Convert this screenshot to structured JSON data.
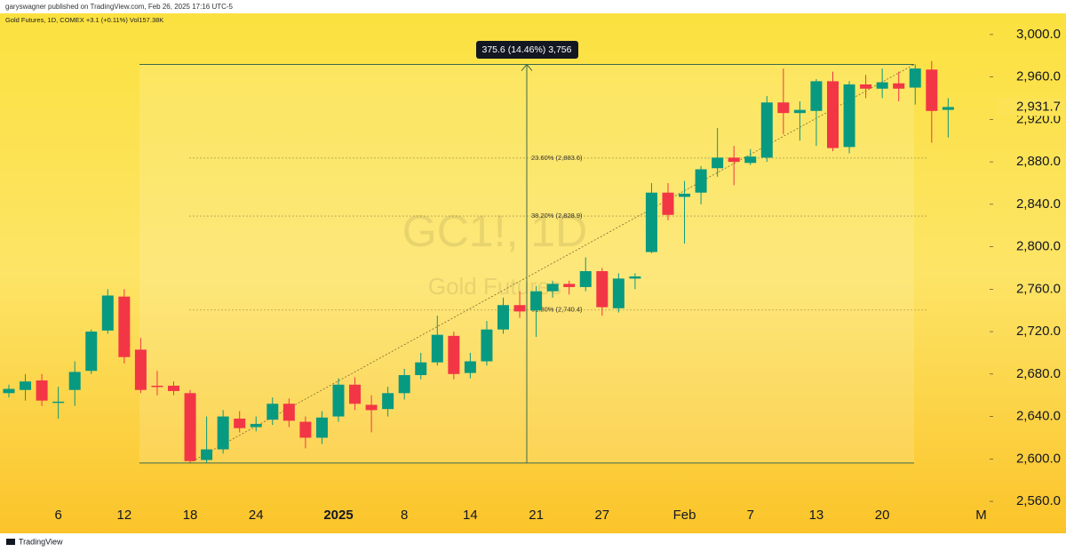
{
  "header": {
    "byline": "garyswagner published on TradingView.com, Feb 26, 2025 17:16 UTC-5",
    "footer": "TradingView"
  },
  "chart_data": {
    "type": "candlestick",
    "title": "Gold Futures, 1D, COMEX +3.1 (+0.11%) Vol157.38K",
    "watermark": "GC1!, 1D",
    "watermark_subtitle": "Gold Futures",
    "categories": [
      null,
      null,
      null,
      "6",
      null,
      null,
      null,
      "12",
      null,
      null,
      null,
      "18",
      null,
      null,
      null,
      "24",
      null,
      null,
      null,
      null,
      "2025",
      null,
      null,
      null,
      "8",
      null,
      null,
      null,
      "14",
      null,
      null,
      null,
      "21",
      null,
      null,
      null,
      "27",
      null,
      null,
      null,
      null,
      "Feb",
      null,
      null,
      null,
      "7",
      null,
      null,
      null,
      "13",
      null,
      null,
      null,
      "20",
      null,
      null,
      null,
      null,
      null,
      "M"
    ],
    "series": [
      {
        "name": "open",
        "values": [
          2662,
          2665,
          2674,
          2654,
          2665,
          2683,
          2721,
          2753,
          2703,
          2669,
          2669,
          2662,
          2599,
          2609,
          2638,
          2630,
          2637,
          2652,
          2635,
          2620,
          2640,
          2670,
          2651,
          2647,
          2662,
          2679,
          2691,
          2716,
          2681,
          2692,
          2722,
          2745,
          2740,
          2758,
          2765,
          2762,
          2777,
          2742,
          2770,
          2795,
          2851,
          2847,
          2851,
          2874,
          2884,
          2879,
          2884,
          2936,
          2926,
          2928,
          2956,
          2894,
          2953,
          2949,
          2954,
          2950,
          2967,
          2929,
          null,
          null
        ]
      },
      {
        "name": "high",
        "values": [
          2670,
          2680,
          2680,
          2668,
          2692,
          2722,
          2760,
          2760,
          2714,
          2683,
          2673,
          2665,
          2640,
          2646,
          2645,
          2640,
          2658,
          2657,
          2640,
          2645,
          2676,
          2677,
          2660,
          2668,
          2685,
          2700,
          2735,
          2720,
          2700,
          2730,
          2752,
          2758,
          2763,
          2768,
          2768,
          2790,
          2780,
          2775,
          2775,
          2860,
          2860,
          2862,
          2876,
          2912,
          2895,
          2892,
          2942,
          2968,
          2937,
          2958,
          2965,
          2956,
          2962,
          2968,
          2965,
          2972,
          2975,
          2940,
          null,
          null
        ]
      },
      {
        "name": "low",
        "values": [
          2658,
          2655,
          2650,
          2638,
          2650,
          2680,
          2718,
          2690,
          2662,
          2660,
          2660,
          2597,
          2596,
          2605,
          2625,
          2626,
          2632,
          2630,
          2610,
          2614,
          2635,
          2646,
          2625,
          2640,
          2656,
          2675,
          2688,
          2675,
          2676,
          2688,
          2718,
          2733,
          2715,
          2752,
          2755,
          2758,
          2735,
          2738,
          2760,
          2794,
          2825,
          2803,
          2840,
          2866,
          2858,
          2877,
          2880,
          2906,
          2900,
          2895,
          2890,
          2888,
          2940,
          2940,
          2937,
          2934,
          2898,
          2903,
          null,
          null
        ]
      },
      {
        "name": "close",
        "values": [
          2666,
          2673,
          2655,
          2654,
          2682,
          2720,
          2754,
          2696,
          2665,
          2668,
          2664,
          2598,
          2609,
          2640,
          2629,
          2633,
          2652,
          2636,
          2620,
          2639,
          2670,
          2652,
          2646,
          2662,
          2679,
          2691,
          2717,
          2680,
          2692,
          2722,
          2745,
          2739,
          2758,
          2765,
          2762,
          2777,
          2743,
          2770,
          2772,
          2851,
          2830,
          2850,
          2873,
          2884,
          2880,
          2885,
          2936,
          2926,
          2929,
          2956,
          2893,
          2953,
          2949,
          2955,
          2949,
          2968,
          2928,
          2931.7,
          null,
          null
        ]
      }
    ],
    "up_color": "#089981",
    "down_color": "#f23645",
    "ylim": [
      2555,
      3020
    ],
    "yticks": [
      {
        "value": 2560,
        "label": "2,560.0"
      },
      {
        "value": 2600,
        "label": "2,600.0"
      },
      {
        "value": 2640,
        "label": "2,640.0"
      },
      {
        "value": 2680,
        "label": "2,680.0"
      },
      {
        "value": 2720,
        "label": "2,720.0"
      },
      {
        "value": 2760,
        "label": "2,760.0"
      },
      {
        "value": 2800,
        "label": "2,800.0"
      },
      {
        "value": 2840,
        "label": "2,840.0"
      },
      {
        "value": 2880,
        "label": "2,880.0"
      },
      {
        "value": 2920,
        "label": "2,920.0"
      },
      {
        "value": 2960,
        "label": "2,960.0"
      },
      {
        "value": 3000,
        "label": "3,000.0"
      }
    ],
    "last_price": {
      "value": 2931.7,
      "label": "2,931.7"
    },
    "grid": false,
    "measure": {
      "top": 2971.8,
      "bottom": 2596.2,
      "label": "375.6 (14.46%) 3,756"
    },
    "fib_levels": [
      {
        "value": 2883.6,
        "label": "23.60% (2,883.6)"
      },
      {
        "value": 2828.9,
        "label": "38.20% (2,828.9)"
      },
      {
        "value": 2740.4,
        "label": "61.80% (2,740.4)"
      }
    ]
  }
}
